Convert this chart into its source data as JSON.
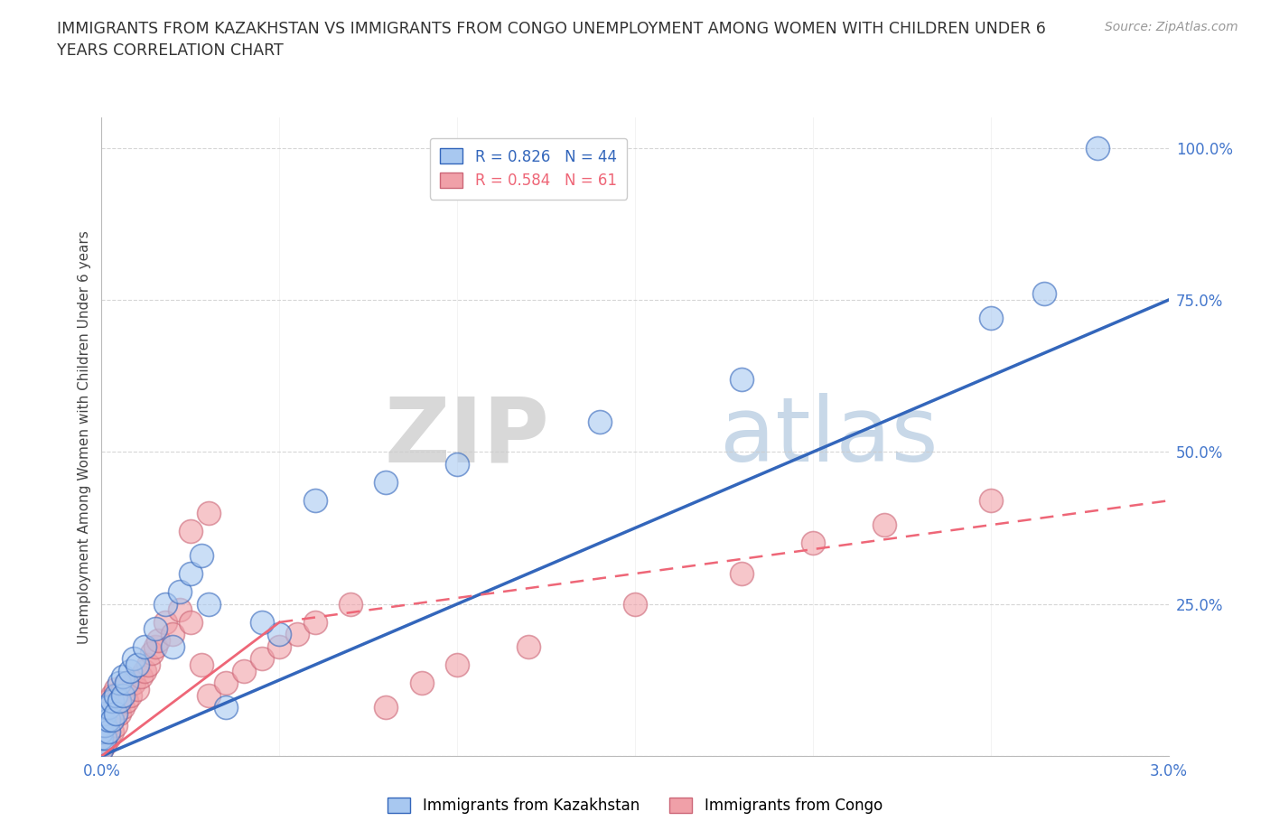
{
  "title": "IMMIGRANTS FROM KAZAKHSTAN VS IMMIGRANTS FROM CONGO UNEMPLOYMENT AMONG WOMEN WITH CHILDREN UNDER 6\nYEARS CORRELATION CHART",
  "source": "Source: ZipAtlas.com",
  "ylabel": "Unemployment Among Women with Children Under 6 years",
  "xlim": [
    0.0,
    0.03
  ],
  "ylim": [
    0.0,
    1.05
  ],
  "color_kaz": "#a8c8f0",
  "color_congo": "#f0a0a8",
  "line_color_kaz": "#3366bb",
  "line_color_congo": "#ee6677",
  "background_color": "#ffffff",
  "kaz_line": [
    0.0,
    0.0,
    0.03,
    0.75
  ],
  "congo_line_solid": [
    0.0,
    0.0,
    0.005,
    0.22
  ],
  "congo_line_dash": [
    0.005,
    0.22,
    0.03,
    0.42
  ],
  "kaz_scatter_x": [
    0.0,
    0.0,
    0.0,
    0.0,
    0.0,
    0.0,
    0.0001,
    0.0001,
    0.0001,
    0.0001,
    0.0002,
    0.0002,
    0.0002,
    0.0003,
    0.0003,
    0.0004,
    0.0004,
    0.0005,
    0.0005,
    0.0006,
    0.0006,
    0.0007,
    0.0008,
    0.0009,
    0.001,
    0.0012,
    0.0015,
    0.0018,
    0.0022,
    0.0025,
    0.0028,
    0.006,
    0.01,
    0.014,
    0.018,
    0.025,
    0.0265,
    0.028,
    0.005,
    0.0035,
    0.0045,
    0.002,
    0.003,
    0.008
  ],
  "kaz_scatter_y": [
    0.01,
    0.02,
    0.03,
    0.04,
    0.05,
    0.06,
    0.03,
    0.05,
    0.07,
    0.08,
    0.04,
    0.06,
    0.08,
    0.06,
    0.09,
    0.07,
    0.1,
    0.09,
    0.12,
    0.1,
    0.13,
    0.12,
    0.14,
    0.16,
    0.15,
    0.18,
    0.21,
    0.25,
    0.27,
    0.3,
    0.33,
    0.42,
    0.48,
    0.55,
    0.62,
    0.72,
    0.76,
    1.0,
    0.2,
    0.08,
    0.22,
    0.18,
    0.25,
    0.45
  ],
  "congo_scatter_x": [
    0.0,
    0.0,
    0.0,
    0.0,
    0.0,
    0.0,
    0.0,
    0.0001,
    0.0001,
    0.0001,
    0.0001,
    0.0001,
    0.0002,
    0.0002,
    0.0002,
    0.0002,
    0.0003,
    0.0003,
    0.0003,
    0.0004,
    0.0004,
    0.0004,
    0.0005,
    0.0005,
    0.0006,
    0.0006,
    0.0007,
    0.0007,
    0.0008,
    0.0009,
    0.001,
    0.0011,
    0.0012,
    0.0013,
    0.0014,
    0.0015,
    0.0016,
    0.0018,
    0.002,
    0.0022,
    0.0025,
    0.0028,
    0.003,
    0.0035,
    0.004,
    0.0045,
    0.005,
    0.0055,
    0.006,
    0.007,
    0.008,
    0.009,
    0.01,
    0.012,
    0.015,
    0.018,
    0.02,
    0.022,
    0.025,
    0.0025,
    0.003
  ],
  "congo_scatter_y": [
    0.01,
    0.02,
    0.03,
    0.04,
    0.05,
    0.06,
    0.07,
    0.02,
    0.04,
    0.05,
    0.07,
    0.08,
    0.03,
    0.05,
    0.07,
    0.09,
    0.04,
    0.07,
    0.1,
    0.05,
    0.08,
    0.11,
    0.07,
    0.1,
    0.08,
    0.11,
    0.09,
    0.12,
    0.1,
    0.12,
    0.11,
    0.13,
    0.14,
    0.15,
    0.17,
    0.18,
    0.19,
    0.22,
    0.2,
    0.24,
    0.22,
    0.15,
    0.1,
    0.12,
    0.14,
    0.16,
    0.18,
    0.2,
    0.22,
    0.25,
    0.08,
    0.12,
    0.15,
    0.18,
    0.25,
    0.3,
    0.35,
    0.38,
    0.42,
    0.37,
    0.4
  ]
}
